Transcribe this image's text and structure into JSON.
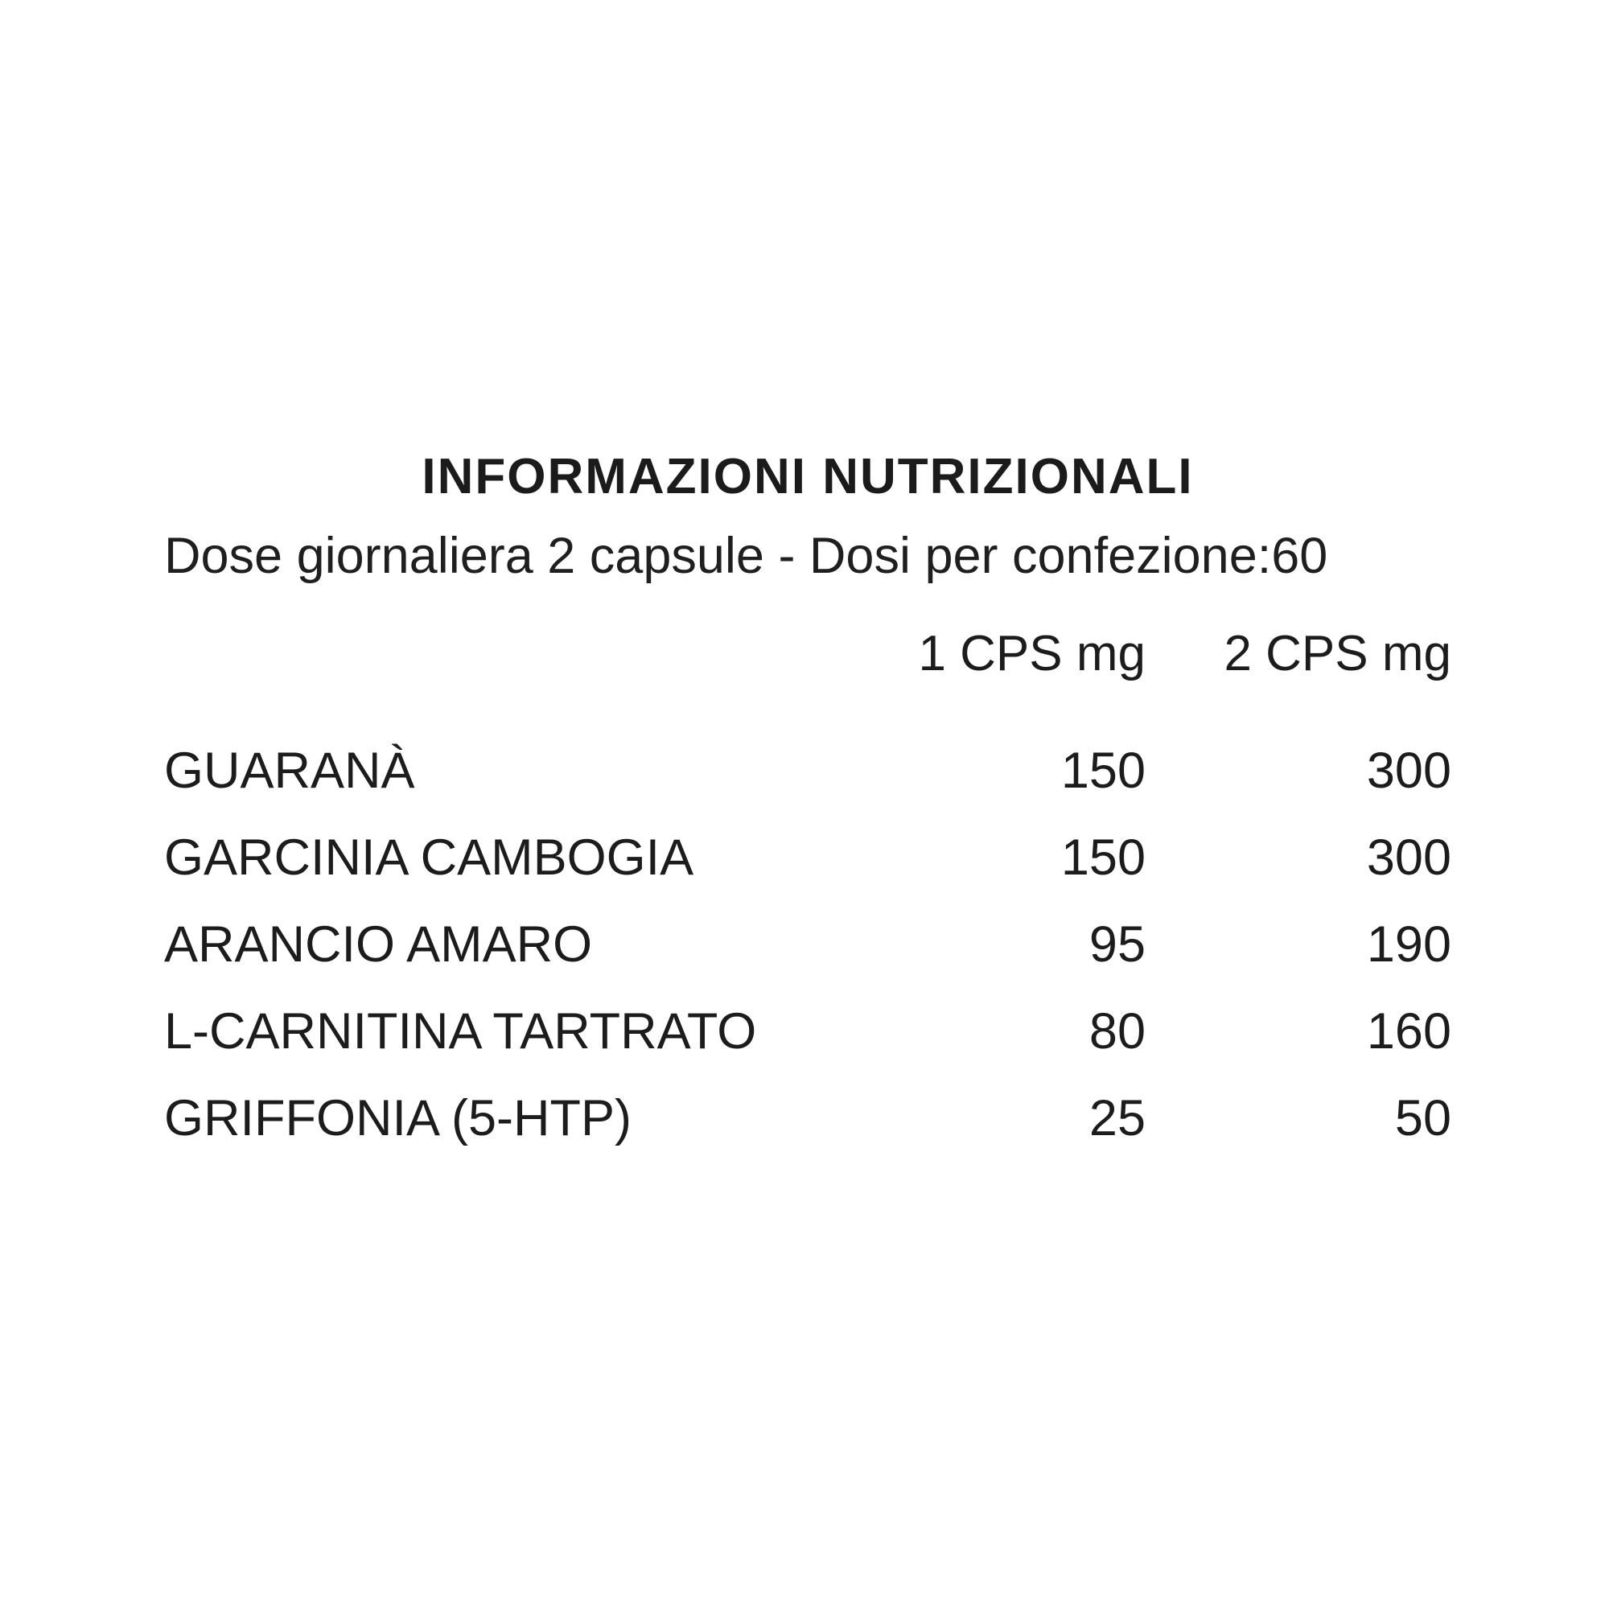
{
  "title": "INFORMAZIONI NUTRIZIONALI",
  "subtitle": "Dose giornaliera 2 capsule - Dosi per confezione:60",
  "table": {
    "columns": [
      "1 CPS mg",
      "2 CPS mg"
    ],
    "rows": [
      {
        "label": "GUARANÀ",
        "cps1": "150",
        "cps2": "300"
      },
      {
        "label": "GARCINIA CAMBOGIA",
        "cps1": "150",
        "cps2": "300"
      },
      {
        "label": "ARANCIO AMARO",
        "cps1": "95",
        "cps2": "190"
      },
      {
        "label": "L-CARNITINA TARTRATO",
        "cps1": "80",
        "cps2": "160"
      },
      {
        "label": "GRIFFONIA (5-HTP)",
        "cps1": "25",
        "cps2": "50"
      }
    ]
  },
  "colors": {
    "text": "#1c1c1c",
    "background": "#ffffff"
  }
}
